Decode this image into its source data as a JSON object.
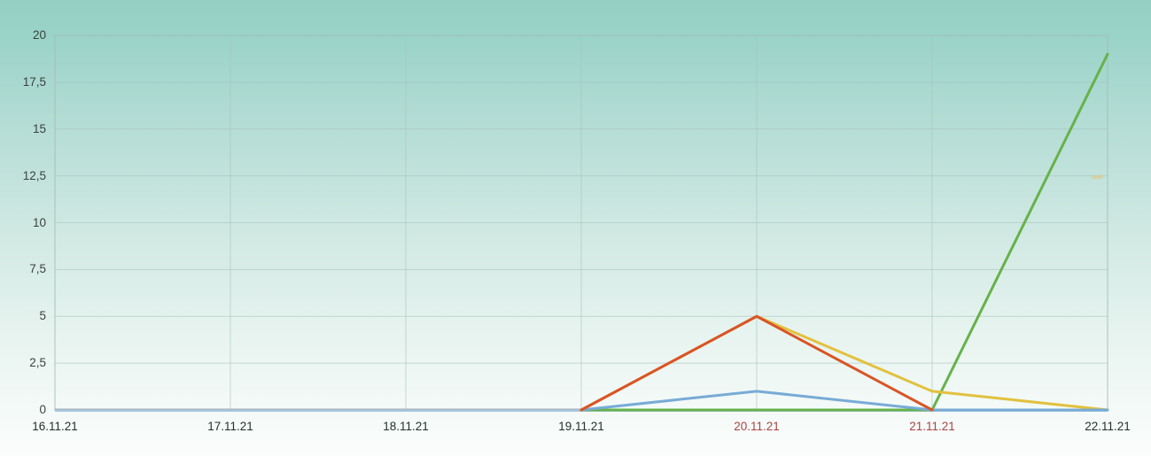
{
  "colors": {
    "background_top": "#95cfc4",
    "background_bottom": "#fbfdfc",
    "gridline": "#a8c2bc",
    "plot_border": "#a3bdb7",
    "axis_line_blue": "#a9c5e0",
    "axis_line_dark": "#94a3ac",
    "ytick_label": "#3a413e",
    "weekday_label": "#22312a",
    "weekend_label": "#a94442",
    "stray_mark": "#d8cc96"
  },
  "chart_data": {
    "type": "line",
    "title": "",
    "xlabel": "",
    "ylabel": "",
    "categories": [
      "16.11.21",
      "17.11.21",
      "18.11.21",
      "19.11.21",
      "20.11.21",
      "21.11.21",
      "22.11.21"
    ],
    "weekend_indices": [
      4,
      5
    ],
    "yticks": [
      {
        "label": "0",
        "value": 0
      },
      {
        "label": "2,5",
        "value": 2.5
      },
      {
        "label": "5",
        "value": 5
      },
      {
        "label": "7,5",
        "value": 7.5
      },
      {
        "label": "10",
        "value": 10
      },
      {
        "label": "12,5",
        "value": 12.5
      },
      {
        "label": "15",
        "value": 15
      },
      {
        "label": "17,5",
        "value": 17.5
      },
      {
        "label": "20",
        "value": 20
      }
    ],
    "ylim": [
      0,
      20
    ],
    "grid": true,
    "legend_position": "none",
    "series": [
      {
        "name": "green-series",
        "color": "#66b24a",
        "values": [
          null,
          null,
          null,
          0,
          0,
          0,
          19
        ]
      },
      {
        "name": "yellow-series",
        "color": "#e2c13e",
        "values": [
          null,
          null,
          null,
          0,
          5,
          1,
          0
        ]
      },
      {
        "name": "blue-series",
        "color": "#78abd6",
        "values": [
          null,
          null,
          null,
          0,
          1,
          0,
          0
        ]
      },
      {
        "name": "red-series",
        "color": "#d95426",
        "values": [
          null,
          null,
          null,
          0,
          5,
          0,
          null
        ]
      }
    ]
  }
}
